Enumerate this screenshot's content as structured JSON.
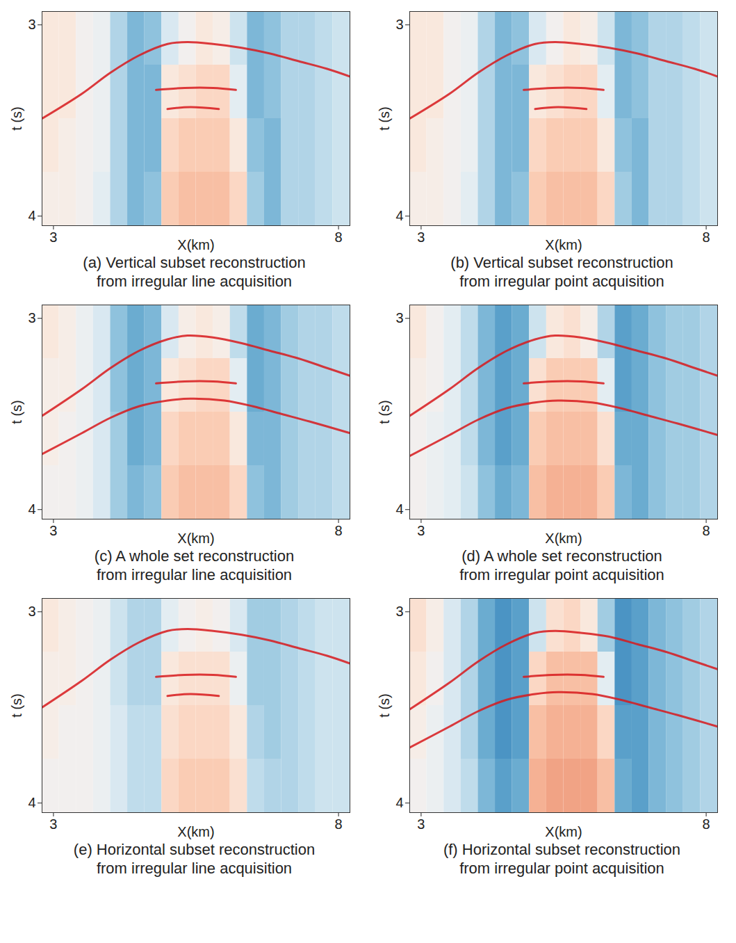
{
  "chart_data": [
    {
      "type": "heatmap",
      "title": "(a) Vertical subset reconstruction\nfrom irregular line acquisition",
      "x_label": "X(km)",
      "y_label": "t (s)",
      "xlim": [
        2.8,
        8.2
      ],
      "ylim": [
        2.93,
        4.05
      ],
      "xticks": [
        3,
        8
      ],
      "yticks": [
        3,
        4
      ],
      "x_bins": [
        2.8,
        3.1,
        3.4,
        3.7,
        4.0,
        4.3,
        4.6,
        4.9,
        5.2,
        5.5,
        5.8,
        6.1,
        6.4,
        6.7,
        7.0,
        7.3,
        7.6,
        7.9,
        8.2
      ],
      "y_bins": [
        2.93,
        3.21,
        3.49,
        3.77,
        4.05
      ],
      "clim": [
        -1,
        1
      ],
      "cells": [
        [
          0.1,
          0.1,
          0,
          -0.05,
          -0.3,
          -0.45,
          -0.4,
          -0.15,
          0,
          0.1,
          0.05,
          -0.2,
          -0.45,
          -0.4,
          -0.3,
          -0.3,
          -0.25,
          -0.2
        ],
        [
          0.1,
          0.1,
          0,
          -0.05,
          -0.3,
          -0.45,
          -0.45,
          0.1,
          0.15,
          0.2,
          0.2,
          -0.1,
          -0.45,
          -0.4,
          -0.3,
          -0.3,
          -0.25,
          -0.2
        ],
        [
          0.1,
          0.05,
          0,
          -0.05,
          -0.3,
          -0.45,
          -0.45,
          0.2,
          0.25,
          0.25,
          0.25,
          0.1,
          -0.4,
          -0.45,
          -0.3,
          -0.3,
          -0.25,
          -0.2
        ],
        [
          0.05,
          0.05,
          0,
          -0.1,
          -0.3,
          -0.45,
          -0.4,
          0.25,
          0.3,
          0.3,
          0.3,
          0.2,
          -0.35,
          -0.45,
          -0.3,
          -0.3,
          -0.25,
          -0.2
        ]
      ],
      "series": [
        {
          "color": "#d7191c",
          "x": [
            2.8,
            3.5,
            4.0,
            4.5,
            5.0,
            5.35,
            5.8,
            6.3,
            6.8,
            7.3,
            7.8,
            8.2
          ],
          "values": [
            3.49,
            3.36,
            3.25,
            3.16,
            3.1,
            3.09,
            3.1,
            3.12,
            3.15,
            3.19,
            3.23,
            3.27
          ]
        },
        {
          "color": "#d7191c",
          "x": [
            4.8,
            5.3,
            5.8,
            6.2
          ],
          "values": [
            3.34,
            3.33,
            3.33,
            3.34
          ]
        },
        {
          "color": "#d7191c",
          "x": [
            5.0,
            5.4,
            5.9
          ],
          "values": [
            3.44,
            3.43,
            3.44
          ]
        }
      ]
    },
    {
      "type": "heatmap",
      "title": "(b) Vertical subset reconstruction\nfrom irregular point acquisition",
      "x_label": "X(km)",
      "y_label": "t (s)",
      "xlim": [
        2.8,
        8.2
      ],
      "ylim": [
        2.93,
        4.05
      ],
      "xticks": [
        3,
        8
      ],
      "yticks": [
        3,
        4
      ],
      "x_bins": [
        2.8,
        3.1,
        3.4,
        3.7,
        4.0,
        4.3,
        4.6,
        4.9,
        5.2,
        5.5,
        5.8,
        6.1,
        6.4,
        6.7,
        7.0,
        7.3,
        7.6,
        7.9,
        8.2
      ],
      "y_bins": [
        2.93,
        3.21,
        3.49,
        3.77,
        4.05
      ],
      "clim": [
        -1,
        1
      ],
      "cells": [
        [
          0.1,
          0.1,
          0,
          -0.05,
          -0.3,
          -0.45,
          -0.4,
          -0.15,
          0,
          0.1,
          0.05,
          -0.2,
          -0.45,
          -0.4,
          -0.3,
          -0.3,
          -0.25,
          -0.2
        ],
        [
          0.1,
          0.1,
          0,
          -0.05,
          -0.3,
          -0.45,
          -0.45,
          0.1,
          0.15,
          0.2,
          0.2,
          -0.1,
          -0.45,
          -0.4,
          -0.3,
          -0.3,
          -0.25,
          -0.2
        ],
        [
          0.1,
          0.05,
          0,
          -0.05,
          -0.3,
          -0.45,
          -0.45,
          0.2,
          0.25,
          0.25,
          0.25,
          0.1,
          -0.4,
          -0.45,
          -0.3,
          -0.3,
          -0.25,
          -0.2
        ],
        [
          0.05,
          0.05,
          0,
          -0.1,
          -0.3,
          -0.45,
          -0.4,
          0.25,
          0.3,
          0.3,
          0.3,
          0.2,
          -0.35,
          -0.45,
          -0.3,
          -0.3,
          -0.25,
          -0.2
        ]
      ],
      "series": [
        {
          "color": "#d7191c",
          "x": [
            2.8,
            3.5,
            4.0,
            4.5,
            5.0,
            5.35,
            5.8,
            6.3,
            6.8,
            7.3,
            7.8,
            8.2
          ],
          "values": [
            3.49,
            3.36,
            3.25,
            3.16,
            3.1,
            3.09,
            3.1,
            3.12,
            3.15,
            3.19,
            3.23,
            3.27
          ]
        },
        {
          "color": "#d7191c",
          "x": [
            4.8,
            5.3,
            5.8,
            6.2
          ],
          "values": [
            3.34,
            3.33,
            3.33,
            3.34
          ]
        },
        {
          "color": "#d7191c",
          "x": [
            5.0,
            5.4,
            5.9
          ],
          "values": [
            3.44,
            3.43,
            3.44
          ]
        }
      ]
    },
    {
      "type": "heatmap",
      "title": "(c) A whole set reconstruction\nfrom irregular line acquisition",
      "x_label": "X(km)",
      "y_label": "t (s)",
      "xlim": [
        2.8,
        8.2
      ],
      "ylim": [
        2.93,
        4.05
      ],
      "xticks": [
        3,
        8
      ],
      "yticks": [
        3,
        4
      ],
      "x_bins": [
        2.8,
        3.1,
        3.4,
        3.7,
        4.0,
        4.3,
        4.6,
        4.9,
        5.2,
        5.5,
        5.8,
        6.1,
        6.4,
        6.7,
        7.0,
        7.3,
        7.6,
        7.9,
        8.2
      ],
      "y_bins": [
        2.93,
        3.21,
        3.49,
        3.77,
        4.05
      ],
      "clim": [
        -1,
        1
      ],
      "cells": [
        [
          0.1,
          0.05,
          -0.05,
          -0.15,
          -0.4,
          -0.5,
          -0.45,
          -0.15,
          0.05,
          0.1,
          0.05,
          -0.25,
          -0.5,
          -0.45,
          -0.35,
          -0.3,
          -0.3,
          -0.25
        ],
        [
          0.05,
          0.05,
          -0.05,
          -0.15,
          -0.4,
          -0.5,
          -0.45,
          0.1,
          0.15,
          0.2,
          0.2,
          -0.1,
          -0.5,
          -0.45,
          -0.35,
          -0.3,
          -0.3,
          -0.25
        ],
        [
          0.05,
          0,
          -0.05,
          -0.15,
          -0.35,
          -0.5,
          -0.45,
          0.2,
          0.25,
          0.25,
          0.25,
          0.1,
          -0.45,
          -0.45,
          -0.35,
          -0.3,
          -0.3,
          -0.25
        ],
        [
          0,
          0,
          -0.05,
          -0.15,
          -0.35,
          -0.45,
          -0.4,
          0.25,
          0.3,
          0.3,
          0.3,
          0.2,
          -0.4,
          -0.45,
          -0.35,
          -0.3,
          -0.3,
          -0.25
        ]
      ],
      "series": [
        {
          "color": "#d7191c",
          "x": [
            2.8,
            3.5,
            4.0,
            4.5,
            5.0,
            5.35,
            5.8,
            6.3,
            6.8,
            7.3,
            7.8,
            8.2
          ],
          "values": [
            3.51,
            3.37,
            3.26,
            3.17,
            3.11,
            3.09,
            3.1,
            3.13,
            3.17,
            3.21,
            3.26,
            3.3
          ]
        },
        {
          "color": "#d7191c",
          "x": [
            2.8,
            3.5,
            4.0,
            4.5,
            5.0,
            5.4,
            6.0,
            6.5,
            7.0,
            7.5,
            8.2
          ],
          "values": [
            3.71,
            3.6,
            3.52,
            3.46,
            3.43,
            3.42,
            3.43,
            3.46,
            3.5,
            3.54,
            3.6
          ]
        },
        {
          "color": "#d7191c",
          "x": [
            4.8,
            5.3,
            5.8,
            6.2
          ],
          "values": [
            3.34,
            3.33,
            3.33,
            3.34
          ]
        }
      ]
    },
    {
      "type": "heatmap",
      "title": "(d) A whole set reconstruction\nfrom irregular point acquisition",
      "x_label": "X(km)",
      "y_label": "t (s)",
      "xlim": [
        2.8,
        8.2
      ],
      "ylim": [
        2.93,
        4.05
      ],
      "xticks": [
        3,
        8
      ],
      "yticks": [
        3,
        4
      ],
      "x_bins": [
        2.8,
        3.1,
        3.4,
        3.7,
        4.0,
        4.3,
        4.6,
        4.9,
        5.2,
        5.5,
        5.8,
        6.1,
        6.4,
        6.7,
        7.0,
        7.3,
        7.6,
        7.9,
        8.2
      ],
      "y_bins": [
        2.93,
        3.21,
        3.49,
        3.77,
        4.05
      ],
      "clim": [
        -1,
        1
      ],
      "cells": [
        [
          0.1,
          0,
          -0.1,
          -0.25,
          -0.45,
          -0.55,
          -0.5,
          -0.2,
          0.1,
          0.15,
          0.05,
          -0.3,
          -0.55,
          -0.5,
          -0.4,
          -0.35,
          -0.35,
          -0.3
        ],
        [
          0.05,
          0,
          -0.1,
          -0.25,
          -0.45,
          -0.55,
          -0.5,
          0.15,
          0.25,
          0.25,
          0.25,
          -0.1,
          -0.55,
          -0.5,
          -0.4,
          -0.35,
          -0.35,
          -0.3
        ],
        [
          0,
          -0.05,
          -0.1,
          -0.25,
          -0.45,
          -0.55,
          -0.5,
          0.25,
          0.3,
          0.3,
          0.3,
          0.15,
          -0.5,
          -0.5,
          -0.4,
          -0.35,
          -0.35,
          -0.3
        ],
        [
          0,
          -0.05,
          -0.1,
          -0.2,
          -0.4,
          -0.5,
          -0.45,
          0.3,
          0.35,
          0.35,
          0.35,
          0.25,
          -0.45,
          -0.5,
          -0.4,
          -0.35,
          -0.35,
          -0.3
        ]
      ],
      "series": [
        {
          "color": "#d7191c",
          "x": [
            2.8,
            3.5,
            4.0,
            4.5,
            5.0,
            5.35,
            5.8,
            6.3,
            6.8,
            7.3,
            7.8,
            8.2
          ],
          "values": [
            3.51,
            3.37,
            3.26,
            3.17,
            3.11,
            3.09,
            3.1,
            3.13,
            3.17,
            3.21,
            3.26,
            3.3
          ]
        },
        {
          "color": "#d7191c",
          "x": [
            2.8,
            3.5,
            4.0,
            4.5,
            5.0,
            5.4,
            6.0,
            6.5,
            7.0,
            7.5,
            8.2
          ],
          "values": [
            3.72,
            3.61,
            3.53,
            3.47,
            3.44,
            3.43,
            3.44,
            3.47,
            3.51,
            3.55,
            3.61
          ]
        },
        {
          "color": "#d7191c",
          "x": [
            4.8,
            5.3,
            5.8,
            6.2
          ],
          "values": [
            3.34,
            3.33,
            3.33,
            3.34
          ]
        }
      ]
    },
    {
      "type": "heatmap",
      "title": "(e) Horizontal subset reconstruction\nfrom irregular line acquisition",
      "x_label": "X(km)",
      "y_label": "t (s)",
      "xlim": [
        2.8,
        8.2
      ],
      "ylim": [
        2.93,
        4.05
      ],
      "xticks": [
        3,
        8
      ],
      "yticks": [
        3,
        4
      ],
      "x_bins": [
        2.8,
        3.1,
        3.4,
        3.7,
        4.0,
        4.3,
        4.6,
        4.9,
        5.2,
        5.5,
        5.8,
        6.1,
        6.4,
        6.7,
        7.0,
        7.3,
        7.6,
        7.9,
        8.2
      ],
      "y_bins": [
        2.93,
        3.21,
        3.49,
        3.77,
        4.05
      ],
      "clim": [
        -1,
        1
      ],
      "cells": [
        [
          0.1,
          0.05,
          0,
          -0.05,
          -0.2,
          -0.3,
          -0.3,
          -0.1,
          0,
          0.05,
          0,
          -0.15,
          -0.35,
          -0.35,
          -0.3,
          -0.25,
          -0.2,
          -0.2
        ],
        [
          0.05,
          0.05,
          0,
          -0.05,
          -0.2,
          -0.3,
          -0.3,
          0.1,
          0.15,
          0.15,
          0.15,
          -0.05,
          -0.35,
          -0.35,
          -0.3,
          -0.25,
          -0.2,
          -0.2
        ],
        [
          0.05,
          0,
          0,
          -0.05,
          -0.15,
          -0.25,
          -0.25,
          0.15,
          0.2,
          0.2,
          0.2,
          0.1,
          -0.3,
          -0.35,
          -0.3,
          -0.25,
          -0.2,
          -0.2
        ],
        [
          0,
          0,
          0,
          -0.05,
          -0.15,
          -0.25,
          -0.25,
          0.2,
          0.25,
          0.25,
          0.25,
          0.15,
          -0.25,
          -0.3,
          -0.3,
          -0.25,
          -0.2,
          -0.2
        ]
      ],
      "series": [
        {
          "color": "#d7191c",
          "x": [
            2.8,
            3.5,
            4.0,
            4.5,
            5.0,
            5.35,
            5.8,
            6.3,
            6.8,
            7.3,
            7.8,
            8.2
          ],
          "values": [
            3.5,
            3.36,
            3.25,
            3.16,
            3.1,
            3.09,
            3.1,
            3.12,
            3.15,
            3.19,
            3.23,
            3.27
          ]
        },
        {
          "color": "#d7191c",
          "x": [
            4.8,
            5.3,
            5.8,
            6.2
          ],
          "values": [
            3.34,
            3.33,
            3.33,
            3.34
          ]
        },
        {
          "color": "#d7191c",
          "x": [
            5.0,
            5.4,
            5.9
          ],
          "values": [
            3.44,
            3.43,
            3.44
          ]
        }
      ]
    },
    {
      "type": "heatmap",
      "title": "(f) Horizontal subset reconstruction\nfrom irregular point acquisition",
      "x_label": "X(km)",
      "y_label": "t (s)",
      "xlim": [
        2.8,
        8.2
      ],
      "ylim": [
        2.93,
        4.05
      ],
      "xticks": [
        3,
        8
      ],
      "yticks": [
        3,
        4
      ],
      "x_bins": [
        2.8,
        3.1,
        3.4,
        3.7,
        4.0,
        4.3,
        4.6,
        4.9,
        5.2,
        5.5,
        5.8,
        6.1,
        6.4,
        6.7,
        7.0,
        7.3,
        7.6,
        7.9,
        8.2
      ],
      "y_bins": [
        2.93,
        3.21,
        3.49,
        3.77,
        4.05
      ],
      "clim": [
        -1,
        1
      ],
      "cells": [
        [
          0.15,
          0.05,
          -0.15,
          -0.3,
          -0.5,
          -0.6,
          -0.55,
          -0.2,
          0.15,
          0.2,
          0.1,
          -0.35,
          -0.6,
          -0.55,
          -0.45,
          -0.4,
          -0.35,
          -0.3
        ],
        [
          0.1,
          0,
          -0.15,
          -0.3,
          -0.5,
          -0.6,
          -0.55,
          0.2,
          0.3,
          0.3,
          0.3,
          -0.1,
          -0.6,
          -0.55,
          -0.45,
          -0.4,
          -0.35,
          -0.3
        ],
        [
          0.05,
          -0.05,
          -0.15,
          -0.3,
          -0.5,
          -0.6,
          -0.55,
          0.3,
          0.35,
          0.35,
          0.35,
          0.2,
          -0.55,
          -0.55,
          -0.45,
          -0.4,
          -0.35,
          -0.3
        ],
        [
          0,
          -0.05,
          -0.15,
          -0.25,
          -0.45,
          -0.55,
          -0.5,
          0.35,
          0.4,
          0.4,
          0.4,
          0.3,
          -0.5,
          -0.55,
          -0.45,
          -0.4,
          -0.35,
          -0.3
        ]
      ],
      "series": [
        {
          "color": "#d7191c",
          "x": [
            2.8,
            3.5,
            4.0,
            4.5,
            5.0,
            5.35,
            5.8,
            6.3,
            6.8,
            7.3,
            7.8,
            8.2
          ],
          "values": [
            3.51,
            3.37,
            3.26,
            3.17,
            3.11,
            3.1,
            3.11,
            3.13,
            3.17,
            3.21,
            3.26,
            3.3
          ]
        },
        {
          "color": "#d7191c",
          "x": [
            2.8,
            3.5,
            4.0,
            4.5,
            5.0,
            5.4,
            6.0,
            6.5,
            7.0,
            7.5,
            8.2
          ],
          "values": [
            3.71,
            3.6,
            3.52,
            3.46,
            3.43,
            3.42,
            3.43,
            3.46,
            3.5,
            3.54,
            3.6
          ]
        },
        {
          "color": "#d7191c",
          "x": [
            4.8,
            5.3,
            5.8,
            6.2
          ],
          "values": [
            3.34,
            3.33,
            3.33,
            3.34
          ]
        }
      ]
    }
  ]
}
